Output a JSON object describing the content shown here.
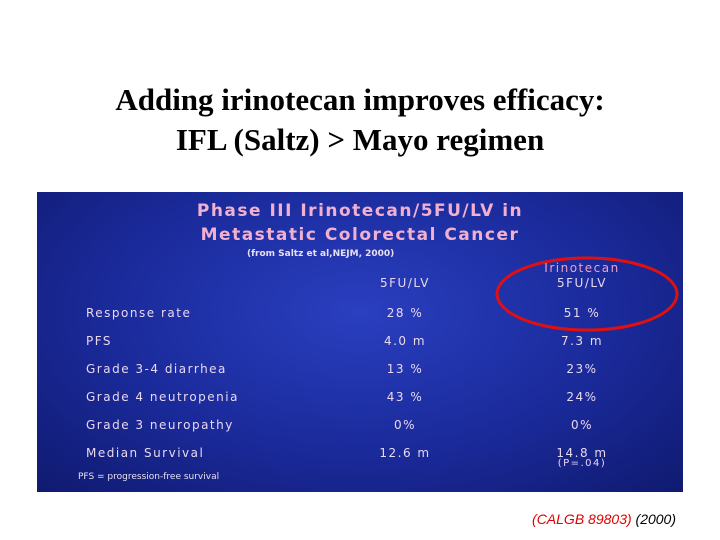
{
  "header": {
    "title_lines": [
      "Adding irinotecan improves efficacy:",
      "IFL (Saltz) > Mayo regimen"
    ]
  },
  "panel": {
    "title_lines": [
      "Phase III Irinotecan/5FU/LV in",
      "Metastatic Colorectal Cancer"
    ],
    "source": "(from Saltz et al,NEJM, 2000)",
    "columns": [
      [
        "5FU/LV"
      ],
      [
        "Irinotecan",
        "5FU/LV"
      ]
    ],
    "rows": [
      [
        "Response rate",
        "28 %",
        "51 %"
      ],
      [
        "PFS",
        "4.0 m",
        "7.3 m"
      ],
      [
        "Grade 3-4 diarrhea",
        "13 %",
        "23%"
      ],
      [
        "Grade 4 neutropenia",
        "43 %",
        "24%"
      ],
      [
        "Grade 3 neuropathy",
        "0%",
        "0%"
      ],
      [
        "Median Survival",
        "12.6 m",
        "14.8 m"
      ]
    ],
    "p_value": "(P=.04)",
    "footnote": "PFS = progression-free survival"
  },
  "footer": {
    "trial": "(CALGB 89803)",
    "year": "(2000)"
  }
}
